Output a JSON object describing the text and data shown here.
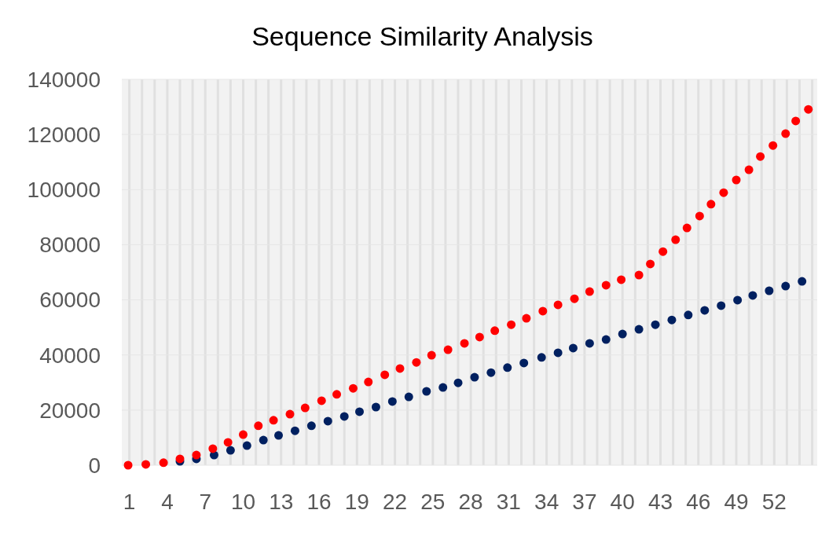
{
  "chart_data": {
    "type": "scatter",
    "title": "Sequence Similarity Analysis",
    "marker": "circle",
    "grid": true,
    "xlim": [
      0.4,
      55.4
    ],
    "xticks": [
      1,
      {
        "value": 2,
        "label": null
      },
      {
        "value": 3,
        "label": null
      },
      4,
      {
        "value": 5,
        "label": null
      },
      {
        "value": 6,
        "label": null
      },
      7,
      {
        "value": 8,
        "label": null
      },
      {
        "value": 9,
        "label": null
      },
      10,
      {
        "value": 11,
        "label": null
      },
      {
        "value": 12,
        "label": null
      },
      13,
      {
        "value": 14,
        "label": null
      },
      {
        "value": 15,
        "label": null
      },
      16,
      {
        "value": 17,
        "label": null
      },
      {
        "value": 18,
        "label": null
      },
      19,
      {
        "value": 20,
        "label": null
      },
      {
        "value": 21,
        "label": null
      },
      22,
      {
        "value": 23,
        "label": null
      },
      {
        "value": 24,
        "label": null
      },
      25,
      {
        "value": 26,
        "label": null
      },
      {
        "value": 27,
        "label": null
      },
      28,
      {
        "value": 29,
        "label": null
      },
      {
        "value": 30,
        "label": null
      },
      31,
      {
        "value": 32,
        "label": null
      },
      {
        "value": 33,
        "label": null
      },
      34,
      {
        "value": 35,
        "label": null
      },
      {
        "value": 36,
        "label": null
      },
      37,
      {
        "value": 38,
        "label": null
      },
      {
        "value": 39,
        "label": null
      },
      40,
      {
        "value": 41,
        "label": null
      },
      {
        "value": 42,
        "label": null
      },
      43,
      {
        "value": 44,
        "label": null
      },
      {
        "value": 45,
        "label": null
      },
      46,
      {
        "value": 47,
        "label": null
      },
      {
        "value": 48,
        "label": null
      },
      49,
      {
        "value": 50,
        "label": null
      },
      {
        "value": 51,
        "label": null
      },
      52,
      {
        "value": 53,
        "label": null
      },
      {
        "value": 54,
        "label": null
      },
      {
        "value": 55,
        "label": null
      }
    ],
    "ylim": [
      0,
      140000
    ],
    "yticks": [
      0,
      20000,
      40000,
      60000,
      80000,
      100000,
      120000,
      140000
    ],
    "series": [
      {
        "color": "#002060",
        "x": [
          5.0,
          6.3,
          7.7,
          9.0,
          10.3,
          11.6,
          12.8,
          14.1,
          15.4,
          16.7,
          18.0,
          19.2,
          20.5,
          21.8,
          23.1,
          24.5,
          25.8,
          27.0,
          28.3,
          29.6,
          30.9,
          32.2,
          33.6,
          34.9,
          36.1,
          37.4,
          38.7,
          40.0,
          41.3,
          42.6,
          43.9,
          45.2,
          46.5,
          47.8,
          49.1,
          50.3,
          51.6,
          52.9,
          54.2
        ],
        "values": [
          1400,
          2300,
          3700,
          5400,
          7100,
          9100,
          10800,
          12500,
          14300,
          16000,
          17700,
          19400,
          21100,
          23100,
          24800,
          26800,
          28200,
          29900,
          31900,
          33600,
          35400,
          37100,
          39100,
          40800,
          42500,
          44200,
          45600,
          47600,
          49300,
          51000,
          52700,
          54500,
          56200,
          57900,
          59900,
          61600,
          63300,
          65000,
          66700
        ]
      },
      {
        "color": "#ff0000",
        "x": [
          0.9,
          2.3,
          3.7,
          5.0,
          6.3,
          7.6,
          8.8,
          10.0,
          11.2,
          12.4,
          13.7,
          14.9,
          16.2,
          17.4,
          18.7,
          19.9,
          21.2,
          22.4,
          23.7,
          24.9,
          26.2,
          27.5,
          28.7,
          29.9,
          31.2,
          32.4,
          33.7,
          34.9,
          36.2,
          37.4,
          38.7,
          39.9,
          41.3,
          42.2,
          43.2,
          44.2,
          45.1,
          46.1,
          47.0,
          48.0,
          49.0,
          50.0,
          50.9,
          51.9,
          52.9,
          53.7,
          54.7
        ],
        "values": [
          0,
          300,
          900,
          2300,
          3700,
          6000,
          8300,
          11100,
          14300,
          16300,
          18500,
          20800,
          23400,
          25700,
          27900,
          30200,
          32800,
          35100,
          37300,
          39900,
          41900,
          44200,
          46500,
          48800,
          51000,
          53300,
          55900,
          58200,
          60400,
          63000,
          65300,
          67300,
          69000,
          73000,
          77500,
          81800,
          86100,
          90400,
          94700,
          98900,
          103500,
          107200,
          112000,
          116000,
          120300,
          124900,
          129100
        ]
      }
    ]
  }
}
